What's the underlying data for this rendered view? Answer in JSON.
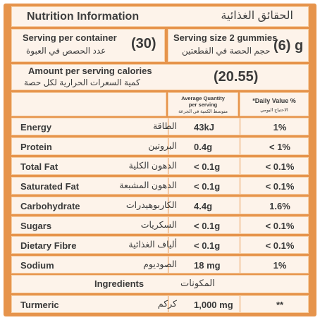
{
  "title": {
    "en": "Nutrition Information",
    "ar": "الحقائق الغذائية"
  },
  "serving_container": {
    "en": "Serving per container",
    "ar": "عدد الحصص في العبوة",
    "value": "(30)"
  },
  "serving_size": {
    "en": "Serving size 2 gummies",
    "ar": "حجم الحصة في القطعتين",
    "value": "(6) g"
  },
  "calories": {
    "en": "Amount per serving calories",
    "ar": "كمية السعرات الحرارية لكل حصة",
    "value": "(20.55)"
  },
  "table_header": {
    "avg_en_1": "Average Quantity",
    "avg_en_2": "per serving",
    "avg_ar": "متوسط الكمية في الجرعة",
    "dv_en": "*Daily Value %",
    "dv_ar": "الاحتياج اليومي"
  },
  "rows": [
    {
      "name": "Energy",
      "ar": "الطاقة",
      "qty": "43kJ",
      "dv": "1%"
    },
    {
      "name": "Protein",
      "ar": "البروتين",
      "qty": "0.4g",
      "dv": "< 1%"
    },
    {
      "name": "Total Fat",
      "ar": "الدهون الكلية",
      "qty": "< 0.1g",
      "dv": "< 0.1%"
    },
    {
      "name": "Saturated Fat",
      "ar": "الدهون المشبعة",
      "qty": "< 0.1g",
      "dv": "< 0.1%"
    },
    {
      "name": "Carbohydrate",
      "ar": "الكاربوهيدرات",
      "qty": "4.4g",
      "dv": "1.6%"
    },
    {
      "name": "Sugars",
      "ar": "السكريات",
      "qty": "< 0.1g",
      "dv": "< 0.1%"
    },
    {
      "name": "Dietary Fibre",
      "ar": "ألياف الغذائية",
      "qty": "< 0.1g",
      "dv": "< 0.1%"
    },
    {
      "name": "Sodium",
      "ar": "الصوديوم",
      "qty": "18 mg",
      "dv": "1%"
    }
  ],
  "ingredients": {
    "en": "Ingredients",
    "ar": "المكونات"
  },
  "ingredient_rows": [
    {
      "name": "Turmeric",
      "ar": "كركم",
      "qty": "1,000 mg",
      "dv": "**"
    }
  ],
  "colors": {
    "accent": "#e6944c",
    "cell": "#fdf3ea",
    "text": "#3a3a3a"
  }
}
